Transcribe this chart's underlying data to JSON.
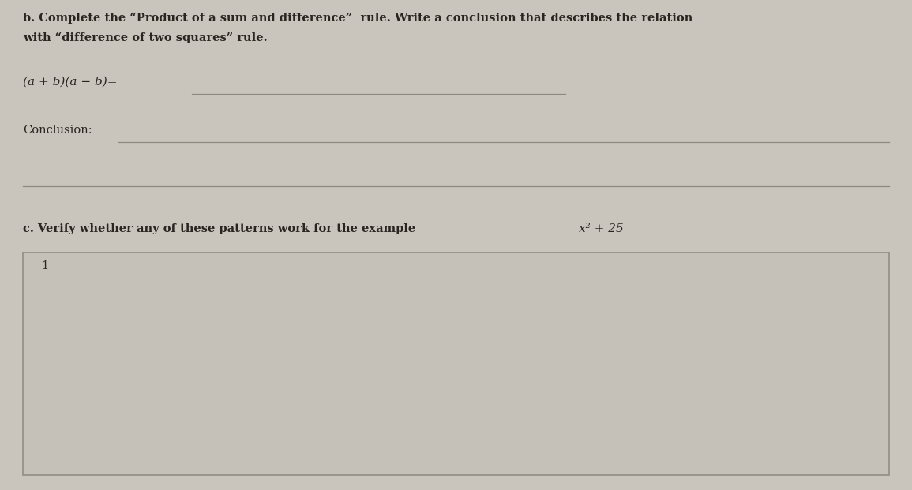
{
  "bg_color": "#c9c4bc",
  "paper_color": "#c9c4bc",
  "box_color": "#c5c0b8",
  "title_line1": "b. Complete the “Product of a sum and difference”  rule. Write a conclusion that describes the relation",
  "title_line2": "with “difference of two squares” rule.",
  "formula_label": "(a + b)(a − b)=",
  "conclusion_label": "Conclusion:",
  "part_c_text": "c. Verify whether any of these patterns work for the example",
  "example_expr": "x² + 25",
  "box_marker": "1",
  "title_fontsize": 10.5,
  "label_fontsize": 10.5,
  "partc_fontsize": 10.5,
  "line_color": "#908880",
  "text_color": "#2a2520"
}
